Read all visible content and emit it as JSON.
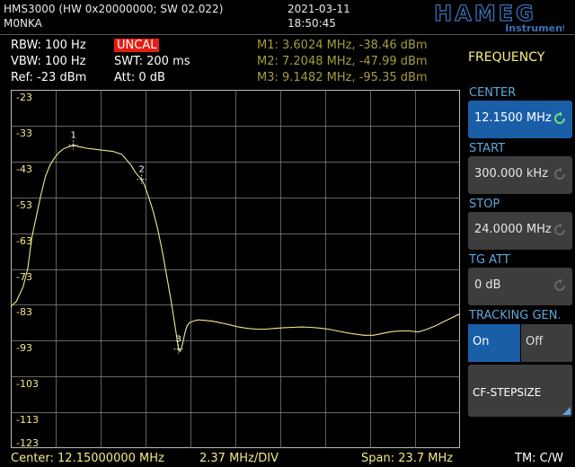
{
  "header": {
    "model_line": "HMS3000 (HW 0x20000000; SW 02.022)",
    "station": "M0NKA",
    "date": "2021-03-11",
    "time": "18:50:45",
    "logo_text": "HAMEG",
    "logo_sub": "Instruments"
  },
  "settings": {
    "rbw": "RBW: 100 Hz",
    "vbw": "VBW: 100 Hz",
    "ref": "Ref: -23 dBm",
    "uncal": "UNCAL",
    "swt": "SWT: 200 ms",
    "att": "Att: 0 dB"
  },
  "markers": {
    "m1": "M1: 3.6024 MHz, -38.46 dBm",
    "m2": "M2: 7.2048 MHz, -47.99 dBm",
    "m3": "M3: 9.1482 MHz, -95.35 dBm"
  },
  "menu": {
    "title": "FREQUENCY",
    "center_label": "CENTER",
    "center_value": "12.1500 MHz",
    "start_label": "START",
    "start_value": "300.000 kHz",
    "stop_label": "STOP",
    "stop_value": "24.0000 MHz",
    "tgatt_label": "TG ATT",
    "tgatt_value": "0 dB",
    "tracking_label": "TRACKING GEN.",
    "tracking_on": "On",
    "tracking_off": "Off",
    "cfstep_label": "CF-STEPSIZE"
  },
  "footer": {
    "center": "Center: 12.15000000 MHz",
    "div": "2.37 MHz/DIV",
    "span": "Span: 23.7 MHz",
    "tm": "TM: C/W"
  },
  "colors": {
    "trace": "#f2ea8a",
    "grid": "#8a8a8a",
    "accent_blue": "#1a5ea8",
    "label_blue": "#5fa7d9",
    "uncal_red": "#e41d12"
  },
  "chart_data": {
    "type": "line",
    "xlabel": "",
    "ylabel": "",
    "xlim": [
      0.3,
      24.0
    ],
    "ylim": [
      -123,
      -23
    ],
    "y_ticks": [
      "-23",
      "-33",
      "-43",
      "-53",
      "-63",
      "-73",
      "-83",
      "-93",
      "-103",
      "-113",
      "-123"
    ],
    "grid": true,
    "series": [
      {
        "x": [
          0.3,
          0.6,
          0.95,
          1.19,
          1.42,
          1.66,
          1.9,
          2.14,
          2.37,
          2.61,
          2.84,
          3.08,
          3.32,
          3.6,
          3.8,
          4.03,
          4.27,
          4.74,
          5.21,
          5.69,
          6.16,
          6.4,
          6.64,
          6.87,
          7.11,
          7.2,
          7.35,
          7.58,
          7.82,
          8.06,
          8.29,
          8.53,
          8.76,
          9.0,
          9.15,
          9.24,
          9.36,
          9.48,
          9.59,
          9.72,
          9.95,
          10.19,
          10.43,
          10.9,
          11.37,
          11.85,
          12.32,
          12.8,
          13.27,
          13.74,
          14.22,
          14.69,
          15.16,
          15.64,
          16.11,
          16.59,
          17.06,
          17.53,
          18.01,
          18.48,
          18.95,
          19.43,
          19.9,
          20.38,
          20.85,
          21.32,
          21.8,
          22.27,
          22.74,
          23.22,
          23.69,
          24.0
        ],
        "y": [
          -83.5,
          -82,
          -78,
          -73,
          -64,
          -58,
          -52,
          -47,
          -44,
          -42,
          -40.5,
          -39.5,
          -39,
          -38.5,
          -38.8,
          -39,
          -39.3,
          -39.6,
          -39.9,
          -40.2,
          -41,
          -42.5,
          -44,
          -46,
          -47.5,
          -48,
          -49.5,
          -53,
          -57,
          -62,
          -68,
          -75,
          -82,
          -90,
          -95.35,
          -96,
          -94,
          -91,
          -89,
          -88,
          -87.5,
          -87.2,
          -87.3,
          -87.5,
          -88,
          -88.6,
          -89.2,
          -89.6,
          -89.8,
          -89.8,
          -89.6,
          -89.4,
          -89.3,
          -89.2,
          -89.3,
          -89.5,
          -89.8,
          -90.3,
          -90.8,
          -91.2,
          -91.5,
          -91.5,
          -91,
          -90.5,
          -90.3,
          -90.3,
          -90.6,
          -89.8,
          -88.8,
          -87.5,
          -86.3,
          -85.5
        ]
      }
    ],
    "markers": [
      {
        "label": "1",
        "x": 3.6024,
        "y": -38.46
      },
      {
        "label": "2",
        "x": 7.2048,
        "y": -47.99
      },
      {
        "label": "3",
        "x": 9.1482,
        "y": -95.35
      }
    ]
  }
}
